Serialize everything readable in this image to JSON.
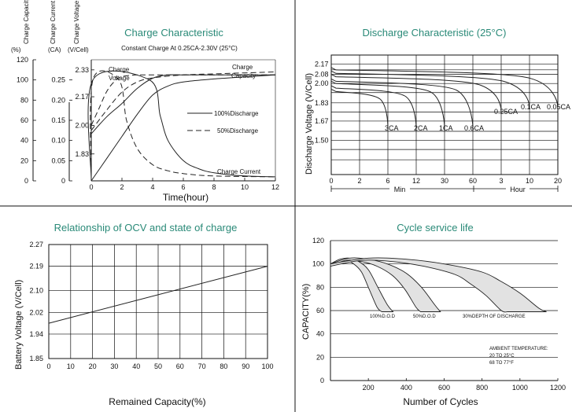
{
  "chart_data": [
    {
      "type": "line",
      "title": "Charge Characteristic",
      "subtitle": "Constant Charge At 0.25CA-2.30V (25°C)",
      "xlabel": "Time(hour)",
      "x_ticks": [
        "0",
        "2",
        "4",
        "6",
        "8",
        "10",
        "12"
      ],
      "xlim": [
        0,
        12
      ],
      "axes": [
        {
          "header": "Charge Capacity",
          "unit": "(%)",
          "ticks": [
            "120",
            "100",
            "80",
            "60",
            "40",
            "20",
            "0"
          ],
          "range": [
            0,
            120
          ]
        },
        {
          "header": "Charge Current",
          "unit": "(CA)",
          "ticks": [
            "0.25",
            "0.20",
            "0.15",
            "0.10",
            "0.05",
            "0"
          ],
          "range": [
            0,
            0.3
          ]
        },
        {
          "header": "Charge Voltage",
          "unit": "(V/Cell)",
          "ticks": [
            "2.33",
            "2.17",
            "2.00",
            "1.83"
          ],
          "range": [
            1.67,
            2.39
          ]
        }
      ],
      "legend": [
        "100%Discharge",
        "50%Discharge"
      ],
      "annotations": [
        "Charge Voltage",
        "Charge Capacity",
        "Charge Current"
      ],
      "series": [
        {
          "name": "Charge Voltage (100%Discharge)",
          "x": [
            0,
            1,
            2,
            3,
            4,
            5,
            6,
            8,
            10,
            12
          ],
          "y": [
            1.95,
            2.05,
            2.13,
            2.22,
            2.28,
            2.3,
            2.3,
            2.3,
            2.3,
            2.3
          ]
        },
        {
          "name": "Charge Voltage (50%Discharge)",
          "x": [
            0,
            0.5,
            1,
            1.5,
            2,
            3,
            4,
            12
          ],
          "y": [
            2.0,
            2.1,
            2.2,
            2.26,
            2.29,
            2.3,
            2.3,
            2.3
          ]
        },
        {
          "name": "Charge Capacity (100%Discharge)",
          "x": [
            0,
            1,
            2,
            3,
            4,
            5,
            6,
            8,
            10,
            12
          ],
          "y": [
            0,
            22,
            44,
            66,
            85,
            94,
            98,
            101,
            103,
            105
          ]
        },
        {
          "name": "Charge Capacity (50%Discharge)",
          "x": [
            0,
            1,
            2,
            3,
            4,
            6,
            8,
            10,
            12
          ],
          "y": [
            50,
            70,
            88,
            98,
            102,
            105,
            106,
            107,
            108
          ]
        },
        {
          "name": "Charge Current (100%Discharge)",
          "x": [
            0,
            0.1,
            3.8,
            4.5,
            5,
            6,
            7,
            8,
            10,
            12
          ],
          "y": [
            0,
            0.25,
            0.25,
            0.16,
            0.1,
            0.05,
            0.03,
            0.02,
            0.012,
            0.01
          ]
        },
        {
          "name": "Charge Current (50%Discharge)",
          "x": [
            0,
            0.1,
            1.8,
            2.3,
            3,
            4,
            5,
            6,
            8,
            12
          ],
          "y": [
            0,
            0.25,
            0.25,
            0.15,
            0.08,
            0.04,
            0.025,
            0.018,
            0.012,
            0.01
          ]
        }
      ]
    },
    {
      "type": "line",
      "title": "Discharge Characteristic (25°C)",
      "ylabel": "Discharge Voltage (V/Cell)",
      "y_ticks": [
        "2.17",
        "2.08",
        "2.00",
        "1.83",
        "1.67",
        "1.50"
      ],
      "ylim": [
        1.2,
        2.25
      ],
      "x_ticks_min": [
        "0",
        "2",
        "6",
        "12",
        "30",
        "60"
      ],
      "x_ticks_hour": [
        "3",
        "10",
        "20"
      ],
      "x_groups": [
        "Min",
        "Hour"
      ],
      "curve_labels": [
        "3CA",
        "2CA",
        "1CA",
        "0.6CA",
        "0.25CA",
        "0.1CA",
        "0.05CA"
      ],
      "series": [
        {
          "name": "3CA",
          "end_tick": "6 Min",
          "start_v": 1.95,
          "end_v": 1.6
        },
        {
          "name": "2CA",
          "end_tick": "12 Min",
          "start_v": 1.98,
          "end_v": 1.6
        },
        {
          "name": "1CA",
          "end_tick": "30 Min",
          "start_v": 2.02,
          "end_v": 1.6
        },
        {
          "name": "0.6CA",
          "end_tick": "60 Min",
          "start_v": 2.04,
          "end_v": 1.6
        },
        {
          "name": "0.25CA",
          "end_tick": "3 Hour",
          "start_v": 2.08,
          "end_v": 1.75
        },
        {
          "name": "0.1CA",
          "end_tick": "10 Hour",
          "start_v": 2.11,
          "end_v": 1.78
        },
        {
          "name": "0.05CA",
          "end_tick": "20 Hour",
          "start_v": 2.14,
          "end_v": 1.78
        }
      ]
    },
    {
      "type": "line",
      "title": "Relationship of OCV and state of charge",
      "xlabel": "Remained Capacity(%)",
      "ylabel": "Battery Voltage (V/Cell)",
      "x_ticks": [
        "0",
        "10",
        "20",
        "30",
        "40",
        "50",
        "60",
        "70",
        "80",
        "90",
        "100"
      ],
      "y_ticks": [
        "2.27",
        "2.19",
        "2.10",
        "2.02",
        "1.94",
        "1.85"
      ],
      "xlim": [
        0,
        100
      ],
      "ylim": [
        1.85,
        2.27
      ],
      "series": [
        {
          "x": [
            0,
            100
          ],
          "y": [
            1.98,
            2.19
          ]
        }
      ]
    },
    {
      "type": "line",
      "title": "Cycle service life",
      "xlabel": "Number of Cycles",
      "ylabel": "CAPACITY(%)",
      "x_ticks": [
        "200",
        "400",
        "600",
        "800",
        "1000",
        "1200"
      ],
      "y_ticks": [
        "120",
        "100",
        "80",
        "60",
        "40",
        "20",
        "0"
      ],
      "xlim": [
        0,
        1200
      ],
      "ylim": [
        0,
        120
      ],
      "band_labels": [
        "100%D.O.D",
        "50%D.O.D",
        "30%DEPTH OF DISCHARGE"
      ],
      "note": [
        "AMBIENT TEMPERATURE:",
        "20 TO 25°C",
        "68 TO 77°F"
      ],
      "series": [
        {
          "name": "100%D.O.D",
          "x": [
            0,
            50,
            100,
            150,
            200,
            250,
            300,
            330
          ],
          "y": [
            100,
            104,
            105,
            102,
            95,
            80,
            65,
            59
          ]
        },
        {
          "name": "50%D.O.D",
          "x": [
            0,
            100,
            200,
            300,
            400,
            480,
            550,
            580
          ],
          "y": [
            100,
            105,
            104,
            100,
            92,
            80,
            65,
            59
          ]
        },
        {
          "name": "30%DEPTH OF DISCHARGE",
          "x": [
            0,
            200,
            400,
            600,
            800,
            900,
            1000,
            1100,
            1140
          ],
          "y": [
            100,
            105,
            104,
            100,
            93,
            85,
            75,
            62,
            59
          ]
        }
      ]
    }
  ]
}
